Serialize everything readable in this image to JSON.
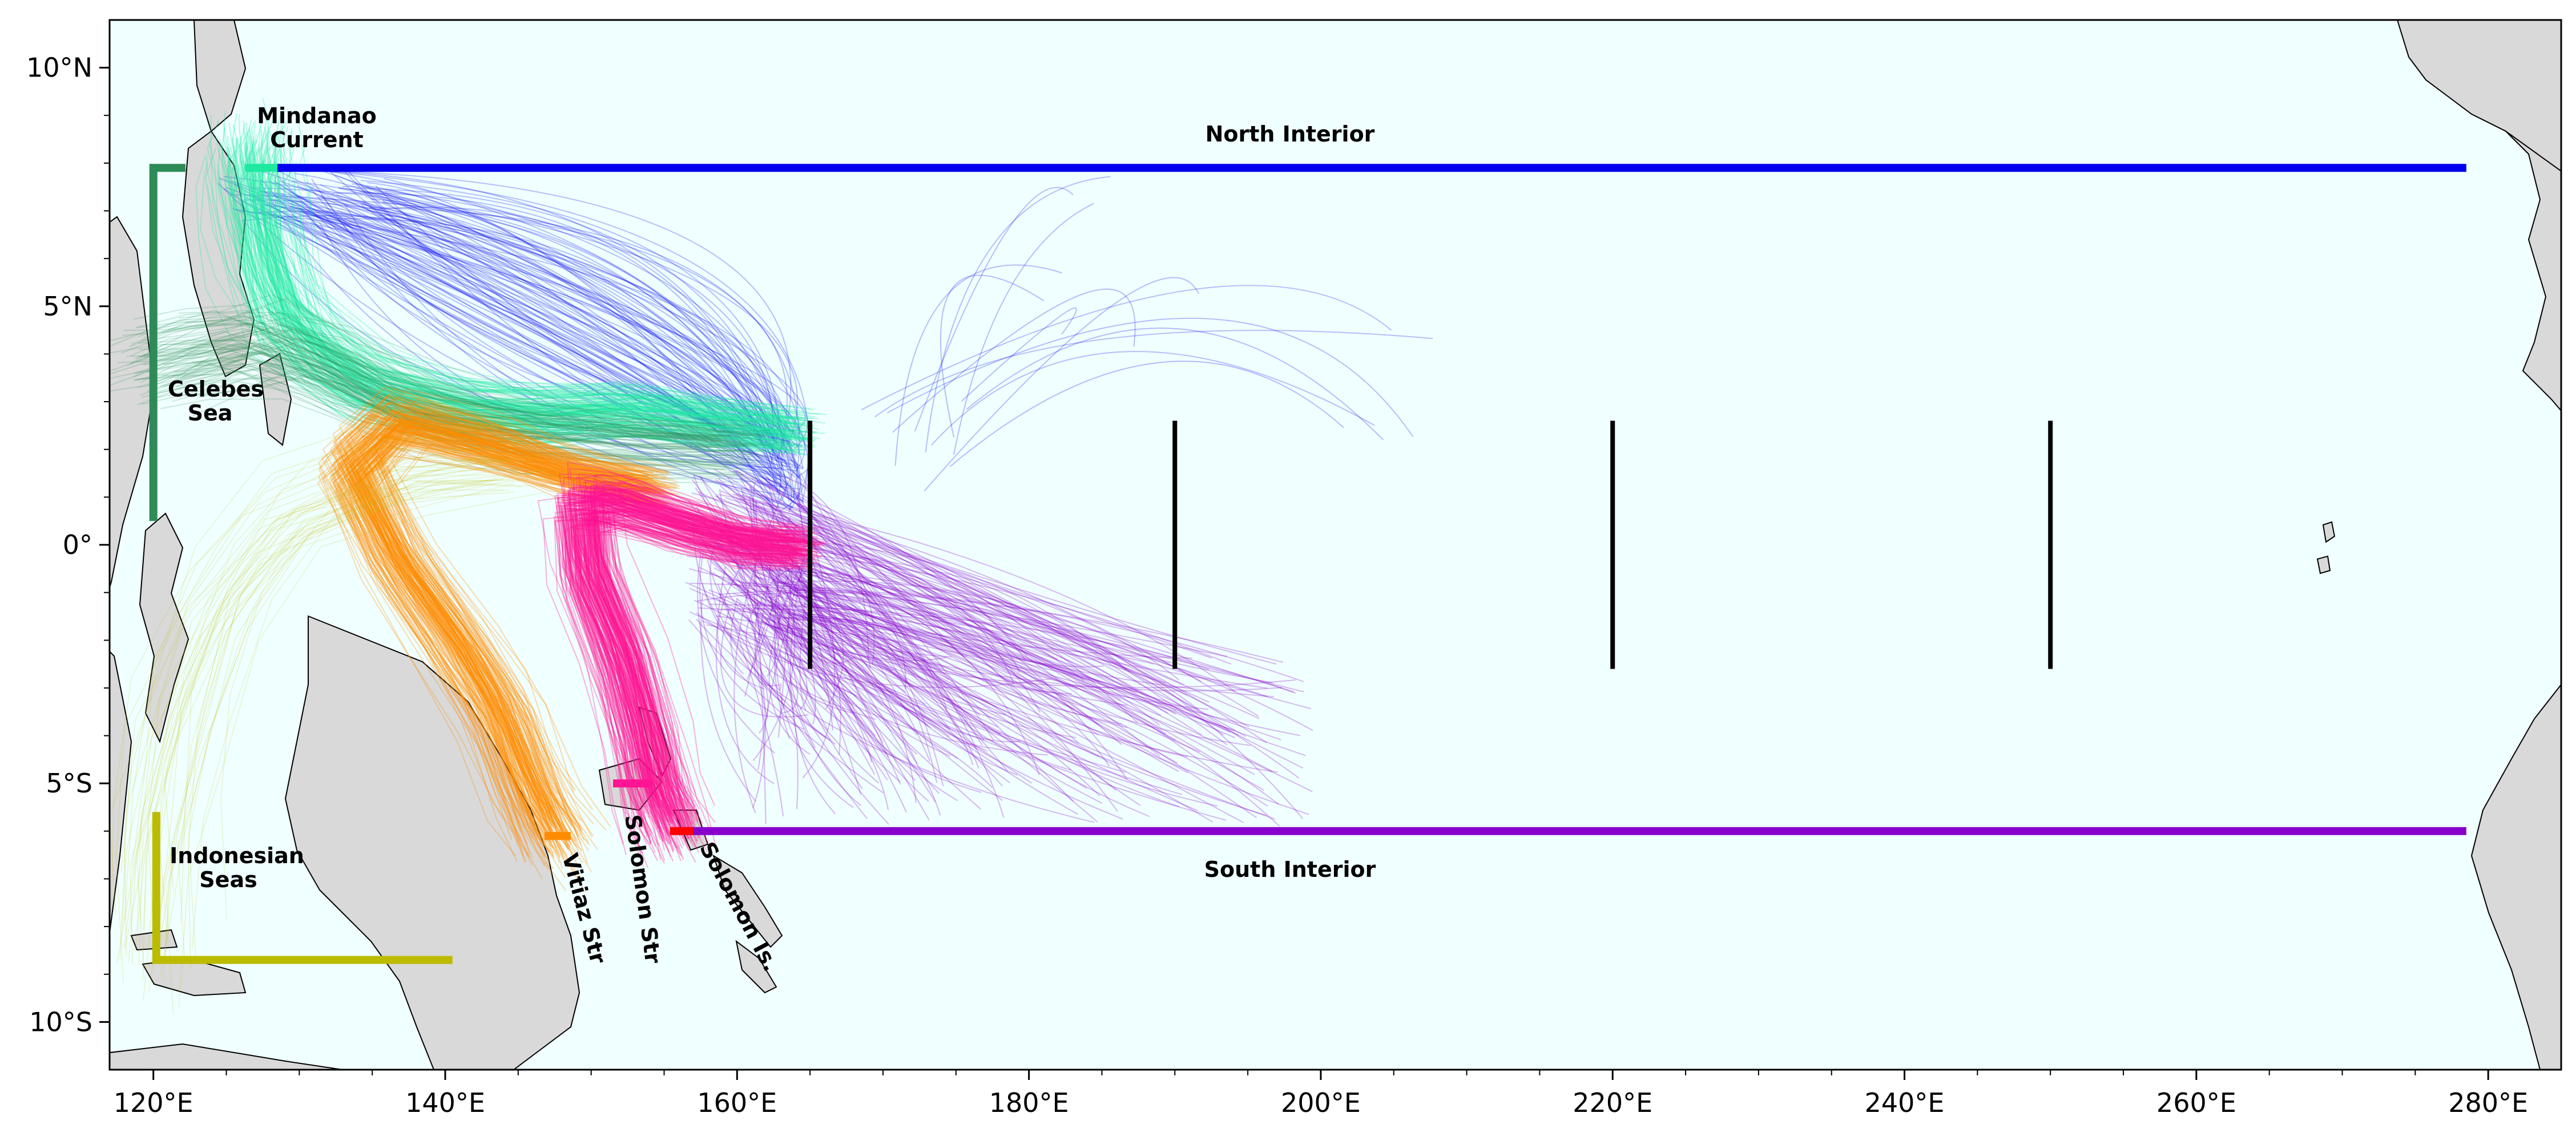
{
  "map": {
    "x_ticks": [
      {
        "lon": 120,
        "label": "120°E"
      },
      {
        "lon": 140,
        "label": "140°E"
      },
      {
        "lon": 160,
        "label": "160°E"
      },
      {
        "lon": 180,
        "label": "180°E"
      },
      {
        "lon": 200,
        "label": "200°E"
      },
      {
        "lon": 220,
        "label": "220°E"
      },
      {
        "lon": 240,
        "label": "240°E"
      },
      {
        "lon": 260,
        "label": "260°E"
      },
      {
        "lon": 280,
        "label": "280°E"
      }
    ],
    "y_ticks": [
      {
        "lat": 10,
        "label": "10°N"
      },
      {
        "lat": 5,
        "label": "5°N"
      },
      {
        "lat": 0,
        "label": "0°"
      },
      {
        "lat": -5,
        "label": "5°S"
      },
      {
        "lat": -10,
        "label": "10°S"
      }
    ],
    "extent": {
      "lon_min": 117,
      "lon_max": 285,
      "lat_min": -11,
      "lat_max": 11
    },
    "colors": {
      "ocean": "#f0ffff",
      "land": "#d9d9d9",
      "coast": "#000000",
      "north_interior": "#0000ee",
      "south_interior": "#8800cc",
      "celebes": "#2e8b57",
      "indonesian": "#bbbb00",
      "mindanao": "#1de9a0",
      "vitiaz": "#ff8c00",
      "solomon_str": "#ff1493",
      "solomon_is": "#ff0000",
      "release": "#000000"
    },
    "labels": {
      "mindanao_1": "Mindanao",
      "mindanao_2": "Current",
      "north_interior": "North Interior",
      "celebes_1": "Celebes",
      "celebes_2": "Sea",
      "indonesian_1": "Indonesian",
      "indonesian_2": "Seas",
      "south_interior": "South Interior",
      "vitiaz": "Vitiaz Str",
      "solomon_str": "Solomon Str",
      "solomon_is": "Solomon Is."
    },
    "boundary_lines": [
      {
        "name": "north-interior-line",
        "color": "north_interior",
        "points": [
          [
            128.5,
            7.9
          ],
          [
            278.5,
            7.9
          ]
        ]
      },
      {
        "name": "south-interior-line",
        "color": "south_interior",
        "points": [
          [
            156,
            -6
          ],
          [
            278.5,
            -6
          ]
        ]
      },
      {
        "name": "celebes-line",
        "color": "celebes",
        "points": [
          [
            120,
            0.5
          ],
          [
            120,
            7.9
          ],
          [
            122.2,
            7.9
          ]
        ]
      },
      {
        "name": "indonesian-line",
        "color": "indonesian",
        "points": [
          [
            120.2,
            -5.6
          ],
          [
            120.2,
            -8.7
          ],
          [
            140.5,
            -8.7
          ]
        ]
      },
      {
        "name": "mindanao-line",
        "color": "mindanao",
        "points": [
          [
            126.3,
            7.9
          ],
          [
            128.5,
            7.9
          ]
        ]
      },
      {
        "name": "vitiaz-line",
        "color": "vitiaz",
        "points": [
          [
            146.8,
            -6.1
          ],
          [
            148.6,
            -6.1
          ]
        ]
      },
      {
        "name": "solomon-str-line",
        "color": "solomon_str",
        "points": [
          [
            151.5,
            -5
          ],
          [
            154.2,
            -5
          ]
        ]
      },
      {
        "name": "solomon-is-line",
        "color": "solomon_is",
        "points": [
          [
            155.4,
            -6
          ],
          [
            157,
            -6
          ]
        ]
      }
    ],
    "release_lines": [
      {
        "lon": 165,
        "lat_min": -2.6,
        "lat_max": 2.6
      },
      {
        "lon": 190,
        "lat_min": -2.6,
        "lat_max": 2.6
      },
      {
        "lon": 220,
        "lat_min": -2.6,
        "lat_max": 2.6
      },
      {
        "lon": 250,
        "lat_min": -2.6,
        "lat_max": 2.6
      }
    ]
  }
}
